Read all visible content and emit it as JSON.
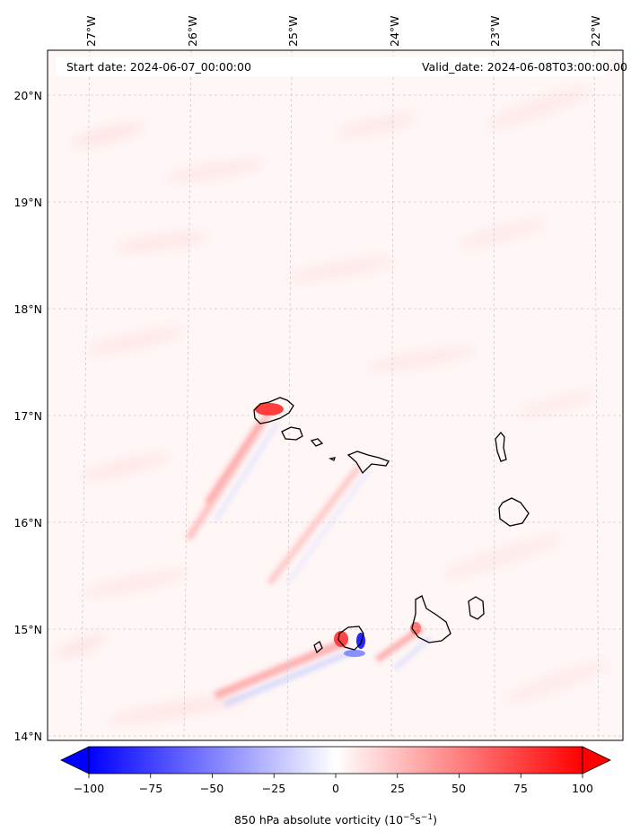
{
  "header": {
    "start_date": "Start date: 2024-06-07_00:00:00",
    "valid_date": "Valid_date: 2024-06-08T03:00:00.00"
  },
  "map": {
    "lon_labels": [
      "27°W",
      "26°W",
      "25°W",
      "24°W",
      "23°W",
      "22°W"
    ],
    "lat_labels": [
      "20°N",
      "19°N",
      "18°N",
      "17°N",
      "16°N",
      "15°N",
      "14°N"
    ],
    "gridlines": true,
    "coastline_color": "#000000"
  },
  "colorbar": {
    "ticks": [
      "−100",
      "−75",
      "−50",
      "−25",
      "0",
      "25",
      "50",
      "75",
      "100"
    ],
    "label": "850 hPa absolute vorticity (10",
    "label_exp1": "−5",
    "label_mid": "s",
    "label_exp2": "−1",
    "label_end": ")",
    "min": -100,
    "max": 100,
    "low_color": "#0000ff",
    "mid_color": "#ffffff",
    "high_color": "#ff0000",
    "extend": "both"
  }
}
